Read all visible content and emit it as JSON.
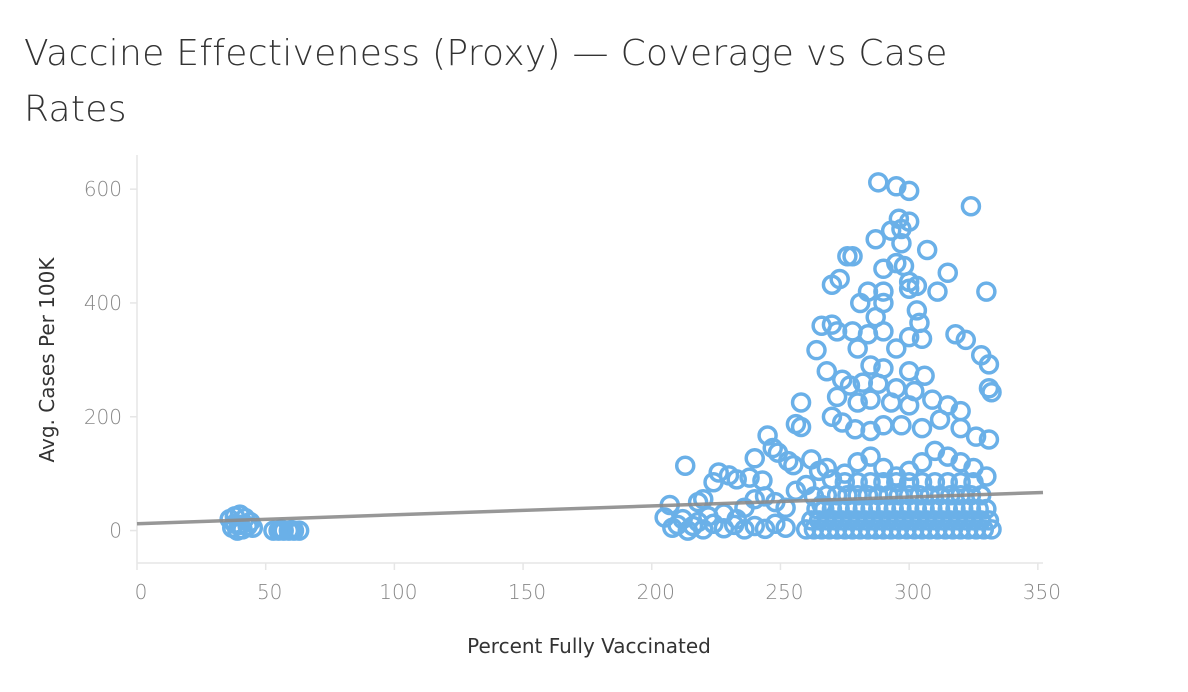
{
  "chart_data": {
    "type": "scatter",
    "title": "Vaccine Effectiveness (Proxy) — Coverage vs Case Rates",
    "xlabel": "Percent Fully Vaccinated",
    "ylabel": "Avg. Cases Per 100K",
    "xlim": [
      0,
      352
    ],
    "ylim": [
      -57,
      660
    ],
    "xticks": [
      0,
      50,
      100,
      150,
      200,
      250,
      300,
      350
    ],
    "yticks": [
      0,
      200,
      400,
      600
    ],
    "grid": false,
    "marker_color": "#6AB0E8",
    "trend_color": "#8C8C8C",
    "trend_line": {
      "x": [
        0,
        352
      ],
      "y": [
        12,
        67
      ]
    },
    "points": [
      [
        36,
        20
      ],
      [
        38,
        25
      ],
      [
        40,
        28
      ],
      [
        42,
        22
      ],
      [
        44,
        15
      ],
      [
        37,
        5
      ],
      [
        39,
        0
      ],
      [
        41,
        2
      ],
      [
        43,
        8
      ],
      [
        45,
        5
      ],
      [
        38,
        12
      ],
      [
        40,
        10
      ],
      [
        53,
        0
      ],
      [
        55,
        0
      ],
      [
        57,
        0
      ],
      [
        59,
        0
      ],
      [
        61,
        0
      ],
      [
        63,
        0
      ],
      [
        56,
        2
      ],
      [
        60,
        1
      ],
      [
        288,
        612
      ],
      [
        295,
        605
      ],
      [
        300,
        597
      ],
      [
        324,
        570
      ],
      [
        296,
        548
      ],
      [
        300,
        543
      ],
      [
        297,
        530
      ],
      [
        293,
        527
      ],
      [
        297,
        505
      ],
      [
        287,
        512
      ],
      [
        307,
        493
      ],
      [
        276,
        482
      ],
      [
        278,
        482
      ],
      [
        270,
        432
      ],
      [
        273,
        442
      ],
      [
        315,
        453
      ],
      [
        311,
        420
      ],
      [
        330,
        420
      ],
      [
        300,
        437
      ],
      [
        303,
        430
      ],
      [
        290,
        460
      ],
      [
        295,
        470
      ],
      [
        298,
        465
      ],
      [
        300,
        425
      ],
      [
        290,
        420
      ],
      [
        284,
        420
      ],
      [
        290,
        400
      ],
      [
        281,
        400
      ],
      [
        303,
        387
      ],
      [
        287,
        375
      ],
      [
        304,
        365
      ],
      [
        266,
        360
      ],
      [
        270,
        362
      ],
      [
        272,
        350
      ],
      [
        278,
        350
      ],
      [
        284,
        345
      ],
      [
        290,
        350
      ],
      [
        300,
        340
      ],
      [
        305,
        337
      ],
      [
        318,
        345
      ],
      [
        322,
        335
      ],
      [
        328,
        308
      ],
      [
        331,
        292
      ],
      [
        264,
        317
      ],
      [
        280,
        320
      ],
      [
        295,
        320
      ],
      [
        285,
        290
      ],
      [
        290,
        285
      ],
      [
        300,
        280
      ],
      [
        306,
        272
      ],
      [
        268,
        280
      ],
      [
        274,
        265
      ],
      [
        277,
        255
      ],
      [
        282,
        260
      ],
      [
        288,
        258
      ],
      [
        295,
        250
      ],
      [
        302,
        245
      ],
      [
        309,
        230
      ],
      [
        315,
        220
      ],
      [
        320,
        210
      ],
      [
        331,
        250
      ],
      [
        332,
        243
      ],
      [
        272,
        235
      ],
      [
        280,
        225
      ],
      [
        285,
        230
      ],
      [
        293,
        225
      ],
      [
        300,
        220
      ],
      [
        258,
        225
      ],
      [
        256,
        187
      ],
      [
        258,
        182
      ],
      [
        270,
        200
      ],
      [
        274,
        190
      ],
      [
        279,
        178
      ],
      [
        285,
        175
      ],
      [
        290,
        185
      ],
      [
        297,
        185
      ],
      [
        305,
        180
      ],
      [
        312,
        195
      ],
      [
        320,
        180
      ],
      [
        326,
        165
      ],
      [
        331,
        160
      ],
      [
        245,
        167
      ],
      [
        247,
        145
      ],
      [
        249,
        137
      ],
      [
        240,
        127
      ],
      [
        253,
        122
      ],
      [
        230,
        97
      ],
      [
        226,
        102
      ],
      [
        213,
        114
      ],
      [
        233,
        90
      ],
      [
        238,
        93
      ],
      [
        243,
        88
      ],
      [
        255,
        115
      ],
      [
        262,
        125
      ],
      [
        265,
        105
      ],
      [
        268,
        110
      ],
      [
        220,
        55
      ],
      [
        218,
        50
      ],
      [
        224,
        85
      ],
      [
        207,
        45
      ],
      [
        205,
        23
      ],
      [
        210,
        10
      ],
      [
        214,
        0
      ],
      [
        218,
        15
      ],
      [
        222,
        25
      ],
      [
        228,
        30
      ],
      [
        233,
        20
      ],
      [
        236,
        40
      ],
      [
        240,
        55
      ],
      [
        244,
        60
      ],
      [
        248,
        50
      ],
      [
        252,
        40
      ],
      [
        256,
        70
      ],
      [
        260,
        80
      ],
      [
        263,
        60
      ],
      [
        266,
        45
      ],
      [
        270,
        90
      ],
      [
        275,
        100
      ],
      [
        280,
        120
      ],
      [
        285,
        130
      ],
      [
        290,
        110
      ],
      [
        295,
        95
      ],
      [
        300,
        105
      ],
      [
        305,
        120
      ],
      [
        310,
        140
      ],
      [
        315,
        130
      ],
      [
        320,
        120
      ],
      [
        325,
        110
      ],
      [
        330,
        95
      ],
      [
        208,
        5
      ],
      [
        212,
        20
      ],
      [
        216,
        8
      ],
      [
        220,
        2
      ],
      [
        224,
        12
      ],
      [
        228,
        4
      ],
      [
        232,
        10
      ],
      [
        236,
        2
      ],
      [
        240,
        8
      ],
      [
        244,
        3
      ],
      [
        248,
        12
      ],
      [
        252,
        5
      ],
      [
        260,
        2
      ],
      [
        263,
        2
      ],
      [
        266,
        2
      ],
      [
        269,
        2
      ],
      [
        272,
        2
      ],
      [
        275,
        2
      ],
      [
        278,
        2
      ],
      [
        281,
        2
      ],
      [
        284,
        2
      ],
      [
        287,
        2
      ],
      [
        290,
        2
      ],
      [
        293,
        2
      ],
      [
        296,
        2
      ],
      [
        299,
        2
      ],
      [
        302,
        2
      ],
      [
        305,
        2
      ],
      [
        308,
        2
      ],
      [
        311,
        2
      ],
      [
        314,
        2
      ],
      [
        317,
        2
      ],
      [
        320,
        2
      ],
      [
        323,
        2
      ],
      [
        326,
        2
      ],
      [
        329,
        2
      ],
      [
        332,
        2
      ],
      [
        262,
        18
      ],
      [
        265,
        18
      ],
      [
        268,
        18
      ],
      [
        271,
        18
      ],
      [
        274,
        18
      ],
      [
        277,
        18
      ],
      [
        280,
        18
      ],
      [
        283,
        18
      ],
      [
        286,
        18
      ],
      [
        289,
        18
      ],
      [
        292,
        18
      ],
      [
        295,
        18
      ],
      [
        298,
        18
      ],
      [
        301,
        18
      ],
      [
        304,
        18
      ],
      [
        307,
        18
      ],
      [
        310,
        18
      ],
      [
        313,
        18
      ],
      [
        316,
        18
      ],
      [
        319,
        18
      ],
      [
        322,
        18
      ],
      [
        325,
        18
      ],
      [
        328,
        18
      ],
      [
        331,
        18
      ],
      [
        264,
        38
      ],
      [
        267,
        38
      ],
      [
        270,
        38
      ],
      [
        273,
        38
      ],
      [
        276,
        38
      ],
      [
        279,
        38
      ],
      [
        282,
        38
      ],
      [
        285,
        38
      ],
      [
        288,
        38
      ],
      [
        291,
        38
      ],
      [
        294,
        38
      ],
      [
        297,
        38
      ],
      [
        300,
        38
      ],
      [
        303,
        38
      ],
      [
        306,
        38
      ],
      [
        309,
        38
      ],
      [
        312,
        38
      ],
      [
        315,
        38
      ],
      [
        318,
        38
      ],
      [
        321,
        38
      ],
      [
        324,
        38
      ],
      [
        327,
        38
      ],
      [
        330,
        38
      ],
      [
        268,
        62
      ],
      [
        272,
        62
      ],
      [
        276,
        62
      ],
      [
        280,
        62
      ],
      [
        284,
        62
      ],
      [
        288,
        62
      ],
      [
        292,
        62
      ],
      [
        296,
        62
      ],
      [
        300,
        62
      ],
      [
        304,
        62
      ],
      [
        308,
        62
      ],
      [
        312,
        62
      ],
      [
        316,
        62
      ],
      [
        320,
        62
      ],
      [
        324,
        62
      ],
      [
        328,
        62
      ],
      [
        275,
        85
      ],
      [
        280,
        85
      ],
      [
        285,
        85
      ],
      [
        290,
        85
      ],
      [
        295,
        85
      ],
      [
        300,
        85
      ],
      [
        305,
        85
      ],
      [
        310,
        85
      ],
      [
        315,
        85
      ],
      [
        320,
        85
      ],
      [
        325,
        85
      ]
    ]
  }
}
